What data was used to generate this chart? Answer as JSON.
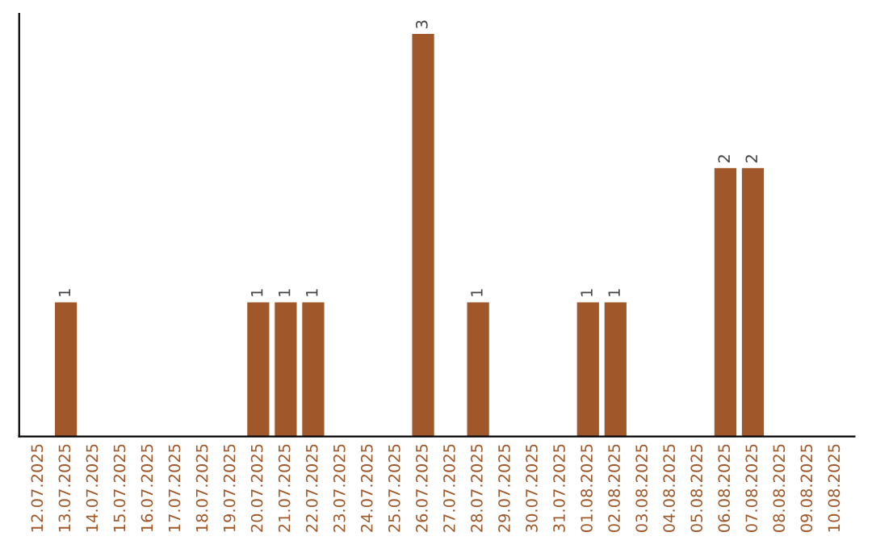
{
  "chart_data": {
    "type": "bar",
    "categories": [
      "12.07.2025",
      "13.07.2025",
      "14.07.2025",
      "15.07.2025",
      "16.07.2025",
      "17.07.2025",
      "18.07.2025",
      "19.07.2025",
      "20.07.2025",
      "21.07.2025",
      "22.07.2025",
      "23.07.2025",
      "24.07.2025",
      "25.07.2025",
      "26.07.2025",
      "27.07.2025",
      "28.07.2025",
      "29.07.2025",
      "30.07.2025",
      "31.07.2025",
      "01.08.2025",
      "02.08.2025",
      "03.08.2025",
      "04.08.2025",
      "05.08.2025",
      "06.08.2025",
      "07.08.2025",
      "08.08.2025",
      "09.08.2025",
      "10.08.2025"
    ],
    "values": [
      0,
      1,
      0,
      0,
      0,
      0,
      0,
      0,
      1,
      1,
      1,
      0,
      0,
      0,
      3,
      0,
      1,
      0,
      0,
      0,
      1,
      1,
      0,
      0,
      0,
      2,
      2,
      0,
      0,
      0
    ],
    "value_labels": [
      null,
      "1",
      null,
      null,
      null,
      null,
      null,
      null,
      "1",
      "1",
      "1",
      null,
      null,
      null,
      "3",
      null,
      "1",
      null,
      null,
      null,
      "1",
      "1",
      null,
      null,
      null,
      "2",
      "2",
      null,
      null,
      null
    ],
    "color": "#a0582a",
    "tick_labels": "x",
    "grid": false,
    "legend": false
  }
}
